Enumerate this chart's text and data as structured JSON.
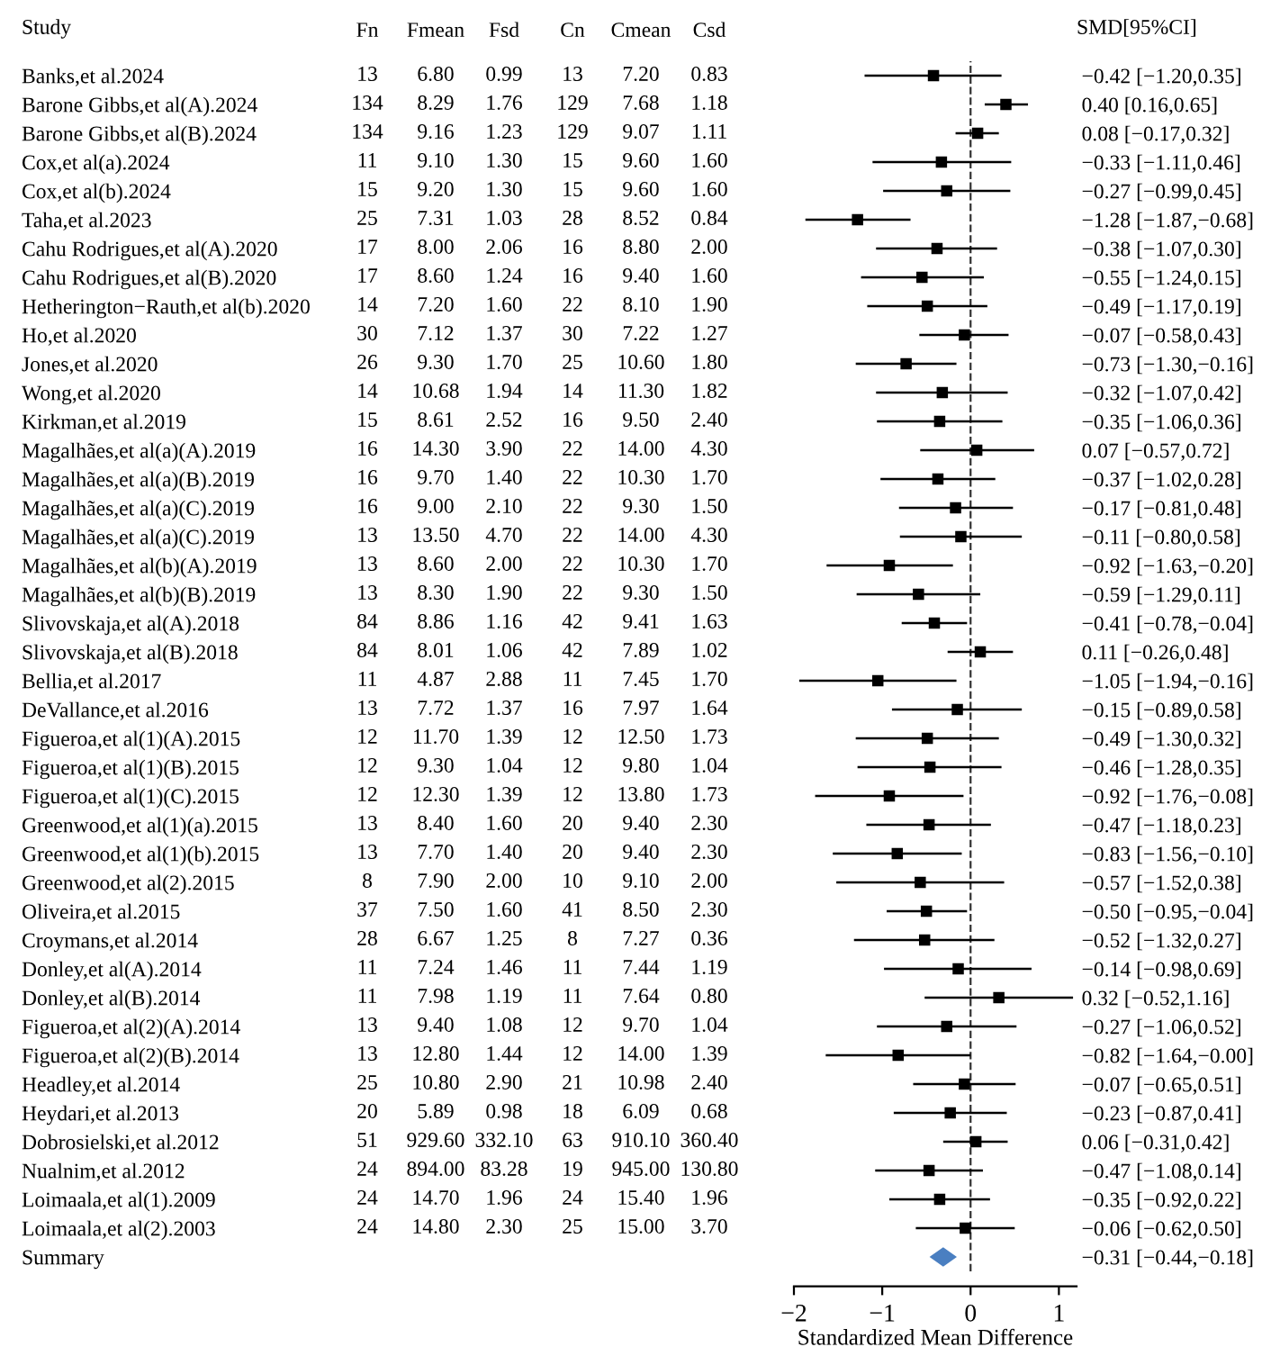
{
  "chart_data": [
    {
      "type": "heatmap",
      "ylabel": "Study",
      "cell_labels": [
        [
          "13",
          "6.80",
          "0.99",
          "13",
          "7.20",
          "0.83"
        ],
        [
          "134",
          "8.29",
          "1.76",
          "129",
          "7.68",
          "1.18"
        ],
        [
          "134",
          "9.16",
          "1.23",
          "129",
          "9.07",
          "1.11"
        ],
        [
          "11",
          "9.10",
          "1.30",
          "15",
          "9.60",
          "1.60"
        ],
        [
          "15",
          "9.20",
          "1.30",
          "15",
          "9.60",
          "1.60"
        ],
        [
          "25",
          "7.31",
          "1.03",
          "28",
          "8.52",
          "0.84"
        ],
        [
          "17",
          "8.00",
          "2.06",
          "16",
          "8.80",
          "2.00"
        ],
        [
          "17",
          "8.60",
          "1.24",
          "16",
          "9.40",
          "1.60"
        ],
        [
          "14",
          "7.20",
          "1.60",
          "22",
          "8.10",
          "1.90"
        ],
        [
          "30",
          "7.12",
          "1.37",
          "30",
          "7.22",
          "1.27"
        ],
        [
          "26",
          "9.30",
          "1.70",
          "25",
          "10.60",
          "1.80"
        ],
        [
          "14",
          "10.68",
          "1.94",
          "14",
          "11.30",
          "1.82"
        ],
        [
          "15",
          "8.61",
          "2.52",
          "16",
          "9.50",
          "2.40"
        ],
        [
          "16",
          "14.30",
          "3.90",
          "22",
          "14.00",
          "4.30"
        ],
        [
          "16",
          "9.70",
          "1.40",
          "22",
          "10.30",
          "1.70"
        ],
        [
          "16",
          "9.00",
          "2.10",
          "22",
          "9.30",
          "1.50"
        ],
        [
          "13",
          "13.50",
          "4.70",
          "22",
          "14.00",
          "4.30"
        ],
        [
          "13",
          "8.60",
          "2.00",
          "22",
          "10.30",
          "1.70"
        ],
        [
          "13",
          "8.30",
          "1.90",
          "22",
          "9.30",
          "1.50"
        ],
        [
          "84",
          "8.86",
          "1.16",
          "42",
          "9.41",
          "1.63"
        ],
        [
          "84",
          "8.01",
          "1.06",
          "42",
          "7.89",
          "1.02"
        ],
        [
          "11",
          "4.87",
          "2.88",
          "11",
          "7.45",
          "1.70"
        ],
        [
          "13",
          "7.72",
          "1.37",
          "16",
          "7.97",
          "1.64"
        ],
        [
          "12",
          "11.70",
          "1.39",
          "12",
          "12.50",
          "1.73"
        ],
        [
          "12",
          "9.30",
          "1.04",
          "12",
          "9.80",
          "1.04"
        ],
        [
          "12",
          "12.30",
          "1.39",
          "12",
          "13.80",
          "1.73"
        ],
        [
          "13",
          "8.40",
          "1.60",
          "20",
          "9.40",
          "2.30"
        ],
        [
          "13",
          "7.70",
          "1.40",
          "20",
          "9.40",
          "2.30"
        ],
        [
          "8",
          "7.90",
          "2.00",
          "10",
          "9.10",
          "2.00"
        ],
        [
          "37",
          "7.50",
          "1.60",
          "41",
          "8.50",
          "2.30"
        ],
        [
          "28",
          "6.67",
          "1.25",
          "8",
          "7.27",
          "0.36"
        ],
        [
          "11",
          "7.24",
          "1.46",
          "11",
          "7.44",
          "1.19"
        ],
        [
          "11",
          "7.98",
          "1.19",
          "11",
          "7.64",
          "0.80"
        ],
        [
          "13",
          "9.40",
          "1.08",
          "12",
          "9.70",
          "1.04"
        ],
        [
          "13",
          "12.80",
          "1.44",
          "12",
          "14.00",
          "1.39"
        ],
        [
          "25",
          "10.80",
          "2.90",
          "21",
          "10.98",
          "2.40"
        ],
        [
          "20",
          "5.89",
          "0.98",
          "18",
          "6.09",
          "0.68"
        ],
        [
          "51",
          "929.60",
          "332.10",
          "63",
          "910.10",
          "360.40"
        ],
        [
          "24",
          "894.00",
          "83.28",
          "19",
          "945.00",
          "130.80"
        ],
        [
          "24",
          "14.70",
          "1.96",
          "24",
          "15.40",
          "1.96"
        ],
        [
          "24",
          "14.80",
          "2.30",
          "25",
          "15.00",
          "3.70"
        ],
        [
          null,
          null,
          null,
          null,
          null,
          null
        ]
      ],
      "categories": [
        "Fn",
        "Fmean",
        "Fsd",
        "Cn",
        "Cmean",
        "Csd"
      ],
      "y_categories": [
        "Banks,et al.2024",
        "Barone Gibbs,et al(A).2024",
        "Barone Gibbs,et al(B).2024",
        "Cox,et al(a).2024",
        "Cox,et al(b).2024",
        "Taha,et al.2023",
        "Cahu Rodrigues,et al(A).2020",
        "Cahu Rodrigues,et al(B).2020",
        "Hetherington−Rauth,et al(b).2020",
        "Ho,et al.2020",
        "Jones,et al.2020",
        "Wong,et al.2020",
        "Kirkman,et al.2019",
        "Magalhães,et al(a)(A).2019",
        "Magalhães,et al(a)(B).2019",
        "Magalhães,et al(a)(C).2019",
        "Magalhães,et al(a)(C).2019",
        "Magalhães,et al(b)(A).2019",
        "Magalhães,et al(b)(B).2019",
        "Slivovskaja,et al(A).2018",
        "Slivovskaja,et al(B).2018",
        "Bellia,et al.2017",
        "DeVallance,et al.2016",
        "Figueroa,et al(1)(A).2015",
        "Figueroa,et al(1)(B).2015",
        "Figueroa,et al(1)(C).2015",
        "Greenwood,et al(1)(a).2015",
        "Greenwood,et al(1)(b).2015",
        "Greenwood,et al(2).2015",
        "Oliveira,et al.2015",
        "Croymans,et al.2014",
        "Donley,et al(A).2014",
        "Donley,et al(B).2014",
        "Figueroa,et al(2)(A).2014",
        "Figueroa,et al(2)(B).2014",
        "Headley,et al.2014",
        "Heydari,et al.2013",
        "Dobrosielski,et al.2012",
        "Nualnim,et al.2012",
        "Loimaala,et al(1).2009",
        "Loimaala,et al(2).2003",
        "Summary"
      ],
      "cells": [
        [
          13,
          6.8,
          0.99,
          13,
          7.2,
          0.83
        ],
        [
          134,
          8.29,
          1.76,
          129,
          7.68,
          1.18
        ],
        [
          134,
          9.16,
          1.23,
          129,
          9.07,
          1.11
        ],
        [
          11,
          9.1,
          1.3,
          15,
          9.6,
          1.6
        ],
        [
          15,
          9.2,
          1.3,
          15,
          9.6,
          1.6
        ],
        [
          25,
          7.31,
          1.03,
          28,
          8.52,
          0.84
        ],
        [
          17,
          8.0,
          2.06,
          16,
          8.8,
          2.0
        ],
        [
          17,
          8.6,
          1.24,
          16,
          9.4,
          1.6
        ],
        [
          14,
          7.2,
          1.6,
          22,
          8.1,
          1.9
        ],
        [
          30,
          7.12,
          1.37,
          30,
          7.22,
          1.27
        ],
        [
          26,
          9.3,
          1.7,
          25,
          10.6,
          1.8
        ],
        [
          14,
          10.68,
          1.94,
          14,
          11.3,
          1.82
        ],
        [
          15,
          8.61,
          2.52,
          16,
          9.5,
          2.4
        ],
        [
          16,
          14.3,
          3.9,
          22,
          14.0,
          4.3
        ],
        [
          16,
          9.7,
          1.4,
          22,
          10.3,
          1.7
        ],
        [
          16,
          9.0,
          2.1,
          22,
          9.3,
          1.5
        ],
        [
          13,
          13.5,
          4.7,
          22,
          14.0,
          4.3
        ],
        [
          13,
          8.6,
          2.0,
          22,
          10.3,
          1.7
        ],
        [
          13,
          8.3,
          1.9,
          22,
          9.3,
          1.5
        ],
        [
          84,
          8.86,
          1.16,
          42,
          9.41,
          1.63
        ],
        [
          84,
          8.01,
          1.06,
          42,
          7.89,
          1.02
        ],
        [
          11,
          4.87,
          2.88,
          11,
          7.45,
          1.7
        ],
        [
          13,
          7.72,
          1.37,
          16,
          7.97,
          1.64
        ],
        [
          12,
          11.7,
          1.39,
          12,
          12.5,
          1.73
        ],
        [
          12,
          9.3,
          1.04,
          12,
          9.8,
          1.04
        ],
        [
          12,
          12.3,
          1.39,
          12,
          13.8,
          1.73
        ],
        [
          13,
          8.4,
          1.6,
          20,
          9.4,
          2.3
        ],
        [
          13,
          7.7,
          1.4,
          20,
          9.4,
          2.3
        ],
        [
          8,
          7.9,
          2.0,
          10,
          9.1,
          2.0
        ],
        [
          37,
          7.5,
          1.6,
          41,
          8.5,
          2.3
        ],
        [
          28,
          6.67,
          1.25,
          8,
          7.27,
          0.36
        ],
        [
          11,
          7.24,
          1.46,
          11,
          7.44,
          1.19
        ],
        [
          11,
          7.98,
          1.19,
          11,
          7.64,
          0.8
        ],
        [
          13,
          9.4,
          1.08,
          12,
          9.7,
          1.04
        ],
        [
          13,
          12.8,
          1.44,
          12,
          14.0,
          1.39
        ],
        [
          25,
          10.8,
          2.9,
          21,
          10.98,
          2.4
        ],
        [
          20,
          5.89,
          0.98,
          18,
          6.09,
          0.68
        ],
        [
          51,
          929.6,
          332.1,
          63,
          910.1,
          360.4
        ],
        [
          24,
          894.0,
          83.28,
          19,
          945.0,
          130.8
        ],
        [
          24,
          14.7,
          1.96,
          24,
          15.4,
          1.96
        ],
        [
          24,
          14.8,
          2.3,
          25,
          15.0,
          3.7
        ],
        [
          null,
          null,
          null,
          null,
          null,
          null
        ]
      ]
    },
    {
      "type": "scatter",
      "orientation": "horizontal",
      "title": "SMD[95%CI]",
      "xlabel": "Standardized Mean Difference",
      "categories": [
        "−0.42 [−1.20,0.35]",
        "0.40 [0.16,0.65]",
        "0.08 [−0.17,0.32]",
        "−0.33 [−1.11,0.46]",
        "−0.27 [−0.99,0.45]",
        "−1.28 [−1.87,−0.68]",
        "−0.38 [−1.07,0.30]",
        "−0.55 [−1.24,0.15]",
        "−0.49 [−1.17,0.19]",
        "−0.07 [−0.58,0.43]",
        "−0.73 [−1.30,−0.16]",
        "−0.32 [−1.07,0.42]",
        "−0.35 [−1.06,0.36]",
        "0.07 [−0.57,0.72]",
        "−0.37 [−1.02,0.28]",
        "−0.17 [−0.81,0.48]",
        "−0.11 [−0.80,0.58]",
        "−0.92 [−1.63,−0.20]",
        "−0.59 [−1.29,0.11]",
        "−0.41 [−0.78,−0.04]",
        "0.11 [−0.26,0.48]",
        "−1.05 [−1.94,−0.16]",
        "−0.15 [−0.89,0.58]",
        "−0.49 [−1.30,0.32]",
        "−0.46 [−1.28,0.35]",
        "−0.92 [−1.76,−0.08]",
        "−0.47 [−1.18,0.23]",
        "−0.83 [−1.56,−0.10]",
        "−0.57 [−1.52,0.38]",
        "−0.50 [−0.95,−0.04]",
        "−0.52 [−1.32,0.27]",
        "−0.14 [−0.98,0.69]",
        "0.32 [−0.52,1.16]",
        "−0.27 [−1.06,0.52]",
        "−0.82 [−1.64,−0.00]",
        "−0.07 [−0.65,0.51]",
        "−0.23 [−0.87,0.41]",
        "0.06 [−0.31,0.42]",
        "−0.47 [−1.08,0.14]",
        "−0.35 [−0.92,0.22]",
        "−0.06 [−0.62,0.50]",
        "−0.31 [−0.44,−0.18]"
      ],
      "xlim": [
        -2,
        1.2
      ],
      "xticks": [
        {
          "value": -2,
          "label": "−2"
        },
        {
          "value": -1,
          "label": "−1"
        },
        0,
        1
      ],
      "ref_lines": [
        {
          "axis": "x",
          "value": 0,
          "line_style": "dashed",
          "color": "#333333"
        }
      ],
      "series": [
        {
          "color": "#000000",
          "marker": "square",
          "values": [
            -0.42,
            0.4,
            0.08,
            -0.33,
            -0.27,
            -1.28,
            -0.38,
            -0.55,
            -0.49,
            -0.07,
            -0.73,
            -0.32,
            -0.35,
            0.07,
            -0.37,
            -0.17,
            -0.11,
            -0.92,
            -0.59,
            -0.41,
            0.11,
            -1.05,
            -0.15,
            -0.49,
            -0.46,
            -0.92,
            -0.47,
            -0.83,
            -0.57,
            -0.5,
            -0.52,
            -0.14,
            0.32,
            -0.27,
            -0.82,
            -0.07,
            -0.23,
            0.06,
            -0.47,
            -0.35,
            -0.06,
            null
          ],
          "errors": [
            [
              -1.2,
              0.35
            ],
            [
              0.16,
              0.65
            ],
            [
              -0.17,
              0.32
            ],
            [
              -1.11,
              0.46
            ],
            [
              -0.99,
              0.45
            ],
            [
              -1.87,
              -0.68
            ],
            [
              -1.07,
              0.3
            ],
            [
              -1.24,
              0.15
            ],
            [
              -1.17,
              0.19
            ],
            [
              -0.58,
              0.43
            ],
            [
              -1.3,
              -0.16
            ],
            [
              -1.07,
              0.42
            ],
            [
              -1.06,
              0.36
            ],
            [
              -0.57,
              0.72
            ],
            [
              -1.02,
              0.28
            ],
            [
              -0.81,
              0.48
            ],
            [
              -0.8,
              0.58
            ],
            [
              -1.63,
              -0.2
            ],
            [
              -1.29,
              0.11
            ],
            [
              -0.78,
              -0.04
            ],
            [
              -0.26,
              0.48
            ],
            [
              -1.94,
              -0.16
            ],
            [
              -0.89,
              0.58
            ],
            [
              -1.3,
              0.32
            ],
            [
              -1.28,
              0.35
            ],
            [
              -1.76,
              -0.08
            ],
            [
              -1.18,
              0.23
            ],
            [
              -1.56,
              -0.1
            ],
            [
              -1.52,
              0.38
            ],
            [
              -0.95,
              -0.04
            ],
            [
              -1.32,
              0.27
            ],
            [
              -0.98,
              0.69
            ],
            [
              -0.52,
              1.16
            ],
            [
              -1.06,
              0.52
            ],
            [
              -1.64,
              -0.0
            ],
            [
              -0.65,
              0.51
            ],
            [
              -0.87,
              0.41
            ],
            [
              -0.31,
              0.42
            ],
            [
              -1.08,
              0.14
            ],
            [
              -0.92,
              0.22
            ],
            [
              -0.62,
              0.5
            ],
            null
          ]
        },
        {
          "color": "#4a7fc1",
          "marker": "diamond",
          "values": [
            null,
            null,
            null,
            null,
            null,
            null,
            null,
            null,
            null,
            null,
            null,
            null,
            null,
            null,
            null,
            null,
            null,
            null,
            null,
            null,
            null,
            null,
            null,
            null,
            null,
            null,
            null,
            null,
            null,
            null,
            null,
            null,
            null,
            null,
            null,
            null,
            null,
            null,
            null,
            null,
            null,
            -0.31
          ],
          "errors": [
            null,
            null,
            null,
            null,
            null,
            null,
            null,
            null,
            null,
            null,
            null,
            null,
            null,
            null,
            null,
            null,
            null,
            null,
            null,
            null,
            null,
            null,
            null,
            null,
            null,
            null,
            null,
            null,
            null,
            null,
            null,
            null,
            null,
            null,
            null,
            null,
            null,
            null,
            null,
            null,
            null,
            [
              -0.44,
              -0.18
            ]
          ]
        }
      ]
    }
  ]
}
